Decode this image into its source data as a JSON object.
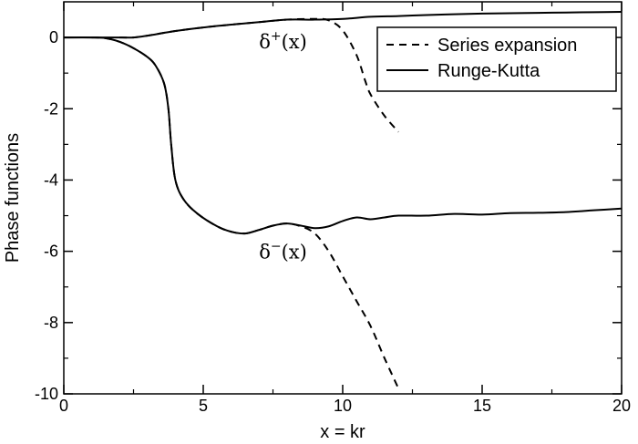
{
  "chart_data": {
    "type": "line",
    "xlabel": "x = kr",
    "ylabel": "Phase functions",
    "xlim": [
      0,
      20
    ],
    "ylim": [
      -10,
      1
    ],
    "xticks": [
      0,
      5,
      10,
      15,
      20
    ],
    "yticks": [
      0,
      -2,
      -4,
      -6,
      -8,
      -10
    ],
    "xtick_labels": [
      "0",
      "5",
      "10",
      "15",
      "20"
    ],
    "ytick_labels": [
      "0",
      "-2",
      "-4",
      "-6",
      "-8",
      "-10"
    ],
    "legend_position": "top-right",
    "legend": [
      {
        "label": "Series expansion",
        "style": "dashed"
      },
      {
        "label": "Runge-Kutta",
        "style": "solid"
      }
    ],
    "annotations": [
      {
        "base": "δ",
        "sup": "+",
        "rest": "(x)",
        "x": 7.0,
        "y": -0.3
      },
      {
        "base": "δ",
        "sup": "−",
        "rest": "(x)",
        "x": 7.0,
        "y": -6.2
      }
    ],
    "series": [
      {
        "legend": "Runge-Kutta",
        "style": "solid",
        "points": [
          [
            0,
            0
          ],
          [
            1,
            0
          ],
          [
            1.5,
            -0.02
          ],
          [
            2,
            -0.12
          ],
          [
            2.5,
            -0.3
          ],
          [
            3,
            -0.55
          ],
          [
            3.3,
            -0.8
          ],
          [
            3.6,
            -1.3
          ],
          [
            3.75,
            -2.0
          ],
          [
            3.85,
            -3.0
          ],
          [
            4,
            -4.0
          ],
          [
            4.3,
            -4.55
          ],
          [
            4.8,
            -4.95
          ],
          [
            5.5,
            -5.3
          ],
          [
            6,
            -5.45
          ],
          [
            6.5,
            -5.5
          ],
          [
            7,
            -5.4
          ],
          [
            7.5,
            -5.28
          ],
          [
            8,
            -5.22
          ],
          [
            8.5,
            -5.28
          ],
          [
            9,
            -5.35
          ],
          [
            9.5,
            -5.3
          ],
          [
            10,
            -5.15
          ],
          [
            10.5,
            -5.05
          ],
          [
            11,
            -5.1
          ],
          [
            11.5,
            -5.05
          ],
          [
            12,
            -5.0
          ],
          [
            13,
            -5.0
          ],
          [
            14,
            -4.95
          ],
          [
            15,
            -4.97
          ],
          [
            16,
            -4.93
          ],
          [
            17,
            -4.92
          ],
          [
            18,
            -4.9
          ],
          [
            19,
            -4.85
          ],
          [
            20,
            -4.8
          ]
        ]
      },
      {
        "legend": "Runge-Kutta",
        "style": "solid",
        "points": [
          [
            0,
            0
          ],
          [
            2,
            0
          ],
          [
            2.5,
            0
          ],
          [
            3,
            0.05
          ],
          [
            4,
            0.18
          ],
          [
            5,
            0.28
          ],
          [
            6,
            0.36
          ],
          [
            7,
            0.43
          ],
          [
            8,
            0.5
          ],
          [
            9,
            0.5
          ],
          [
            10,
            0.52
          ],
          [
            11,
            0.58
          ],
          [
            12,
            0.6
          ],
          [
            13,
            0.63
          ],
          [
            14,
            0.65
          ],
          [
            15,
            0.67
          ],
          [
            16,
            0.68
          ],
          [
            17,
            0.69
          ],
          [
            18,
            0.7
          ],
          [
            19,
            0.71
          ],
          [
            20,
            0.72
          ]
        ]
      },
      {
        "legend": "Series expansion",
        "style": "dashed",
        "points": [
          [
            1.0,
            0
          ],
          [
            1.5,
            -0.02
          ],
          [
            2,
            -0.12
          ],
          [
            2.5,
            -0.3
          ],
          [
            3,
            -0.55
          ],
          [
            3.3,
            -0.8
          ],
          [
            3.6,
            -1.3
          ],
          [
            3.75,
            -2.0
          ],
          [
            3.85,
            -3.0
          ],
          [
            4,
            -4.0
          ],
          [
            4.3,
            -4.55
          ],
          [
            4.8,
            -4.95
          ],
          [
            5.5,
            -5.3
          ],
          [
            6,
            -5.45
          ],
          [
            6.5,
            -5.5
          ],
          [
            7,
            -5.4
          ],
          [
            7.5,
            -5.28
          ],
          [
            8,
            -5.22
          ],
          [
            8.5,
            -5.3
          ],
          [
            9,
            -5.5
          ],
          [
            9.5,
            -6.0
          ],
          [
            10,
            -6.7
          ],
          [
            10.5,
            -7.4
          ],
          [
            11,
            -8.1
          ],
          [
            11.5,
            -9.0
          ],
          [
            12,
            -9.85
          ]
        ]
      },
      {
        "legend": "Series expansion",
        "style": "dashed",
        "points": [
          [
            2,
            0
          ],
          [
            2.5,
            0
          ],
          [
            3,
            0.05
          ],
          [
            4,
            0.18
          ],
          [
            5,
            0.28
          ],
          [
            6,
            0.36
          ],
          [
            7,
            0.43
          ],
          [
            8,
            0.5
          ],
          [
            9,
            0.52
          ],
          [
            9.5,
            0.48
          ],
          [
            10,
            0.2
          ],
          [
            10.5,
            -0.5
          ],
          [
            10.8,
            -1.2
          ],
          [
            11,
            -1.6
          ],
          [
            11.5,
            -2.2
          ],
          [
            12,
            -2.65
          ]
        ]
      }
    ]
  }
}
